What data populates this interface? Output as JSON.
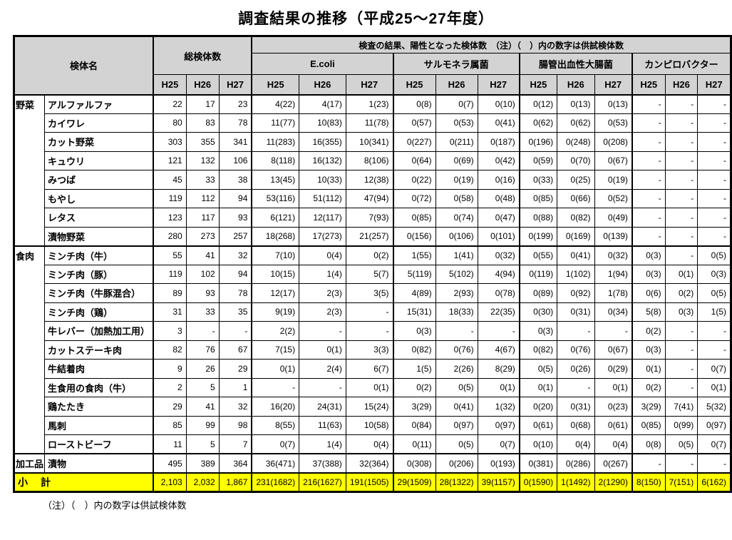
{
  "title": "調査結果の推移（平成25～27年度）",
  "footnote": "（注）（　）内の数字は供試検体数",
  "colors": {
    "header_bg": "#d3d3d3",
    "subtotal_bg": "#ffff00",
    "border": "#000000"
  },
  "header": {
    "sample_name": "検体名",
    "total_samples": "総検体数",
    "positive_note": "検査の結果、陽性となった検体数　（注）（　）内の数字は供試検体数",
    "groups": [
      "E.coli",
      "サルモネラ属菌",
      "腸管出血性大腸菌",
      "カンピロバクター"
    ],
    "years": [
      "H25",
      "H26",
      "H27"
    ]
  },
  "rows": [
    {
      "group": "野菜",
      "group_rows": 8,
      "name": "アルファルファ",
      "total": [
        "22",
        "17",
        "23"
      ],
      "ecoli": [
        "4(22)",
        "4(17)",
        "1(23)"
      ],
      "salmonella": [
        "0(8)",
        "0(7)",
        "0(10)"
      ],
      "ehec": [
        "0(12)",
        "0(13)",
        "0(13)"
      ],
      "campylobacter": [
        "-",
        "-",
        "-"
      ]
    },
    {
      "name": "カイワレ",
      "total": [
        "80",
        "83",
        "78"
      ],
      "ecoli": [
        "11(77)",
        "10(83)",
        "11(78)"
      ],
      "salmonella": [
        "0(57)",
        "0(53)",
        "0(41)"
      ],
      "ehec": [
        "0(62)",
        "0(62)",
        "0(53)"
      ],
      "campylobacter": [
        "-",
        "-",
        "-"
      ]
    },
    {
      "name": "カット野菜",
      "total": [
        "303",
        "355",
        "341"
      ],
      "ecoli": [
        "11(283)",
        "16(355)",
        "10(341)"
      ],
      "salmonella": [
        "0(227)",
        "0(211)",
        "0(187)"
      ],
      "ehec": [
        "0(196)",
        "0(248)",
        "0(208)"
      ],
      "campylobacter": [
        "-",
        "-",
        "-"
      ]
    },
    {
      "name": "キュウリ",
      "total": [
        "121",
        "132",
        "106"
      ],
      "ecoli": [
        "8(118)",
        "16(132)",
        "8(106)"
      ],
      "salmonella": [
        "0(64)",
        "0(69)",
        "0(42)"
      ],
      "ehec": [
        "0(59)",
        "0(70)",
        "0(67)"
      ],
      "campylobacter": [
        "-",
        "-",
        "-"
      ]
    },
    {
      "name": "みつば",
      "total": [
        "45",
        "33",
        "38"
      ],
      "ecoli": [
        "13(45)",
        "10(33)",
        "12(38)"
      ],
      "salmonella": [
        "0(22)",
        "0(19)",
        "0(16)"
      ],
      "ehec": [
        "0(33)",
        "0(25)",
        "0(19)"
      ],
      "campylobacter": [
        "-",
        "-",
        "-"
      ]
    },
    {
      "name": "もやし",
      "total": [
        "119",
        "112",
        "94"
      ],
      "ecoli": [
        "53(116)",
        "51(112)",
        "47(94)"
      ],
      "salmonella": [
        "0(72)",
        "0(58)",
        "0(48)"
      ],
      "ehec": [
        "0(85)",
        "0(66)",
        "0(52)"
      ],
      "campylobacter": [
        "-",
        "-",
        "-"
      ]
    },
    {
      "name": "レタス",
      "total": [
        "123",
        "117",
        "93"
      ],
      "ecoli": [
        "6(121)",
        "12(117)",
        "7(93)"
      ],
      "salmonella": [
        "0(85)",
        "0(74)",
        "0(47)"
      ],
      "ehec": [
        "0(88)",
        "0(82)",
        "0(49)"
      ],
      "campylobacter": [
        "-",
        "-",
        "-"
      ]
    },
    {
      "name": "漬物野菜",
      "total": [
        "280",
        "273",
        "257"
      ],
      "ecoli": [
        "18(268)",
        "17(273)",
        "21(257)"
      ],
      "salmonella": [
        "0(156)",
        "0(106)",
        "0(101)"
      ],
      "ehec": [
        "0(199)",
        "0(169)",
        "0(139)"
      ],
      "campylobacter": [
        "-",
        "-",
        "-"
      ]
    },
    {
      "group": "食肉",
      "group_rows": 11,
      "name": "ミンチ肉（牛）",
      "total": [
        "55",
        "41",
        "32"
      ],
      "ecoli": [
        "7(10)",
        "0(4)",
        "0(2)"
      ],
      "salmonella": [
        "1(55)",
        "1(41)",
        "0(32)"
      ],
      "ehec": [
        "0(55)",
        "0(41)",
        "0(32)"
      ],
      "campylobacter": [
        "0(3)",
        "-",
        "0(5)"
      ]
    },
    {
      "name": "ミンチ肉（豚）",
      "total": [
        "119",
        "102",
        "94"
      ],
      "ecoli": [
        "10(15)",
        "1(4)",
        "5(7)"
      ],
      "salmonella": [
        "5(119)",
        "5(102)",
        "4(94)"
      ],
      "ehec": [
        "0(119)",
        "1(102)",
        "1(94)"
      ],
      "campylobacter": [
        "0(3)",
        "0(1)",
        "0(3)"
      ]
    },
    {
      "name": "ミンチ肉（牛豚混合）",
      "total": [
        "89",
        "93",
        "78"
      ],
      "ecoli": [
        "12(17)",
        "2(3)",
        "3(5)"
      ],
      "salmonella": [
        "4(89)",
        "2(93)",
        "0(78)"
      ],
      "ehec": [
        "0(89)",
        "0(92)",
        "1(78)"
      ],
      "campylobacter": [
        "0(6)",
        "0(2)",
        "0(5)"
      ]
    },
    {
      "name": "ミンチ肉（鶏）",
      "total": [
        "31",
        "33",
        "35"
      ],
      "ecoli": [
        "9(19)",
        "2(3)",
        "-"
      ],
      "salmonella": [
        "15(31)",
        "18(33)",
        "22(35)"
      ],
      "ehec": [
        "0(30)",
        "0(31)",
        "0(34)"
      ],
      "campylobacter": [
        "5(8)",
        "0(3)",
        "1(5)"
      ]
    },
    {
      "name": "牛レバー（加熱加工用）",
      "total": [
        "3",
        "-",
        "-"
      ],
      "ecoli": [
        "2(2)",
        "-",
        "-"
      ],
      "salmonella": [
        "0(3)",
        "-",
        "-"
      ],
      "ehec": [
        "0(3)",
        "-",
        "-"
      ],
      "campylobacter": [
        "0(2)",
        "-",
        "-"
      ]
    },
    {
      "name": "カットステーキ肉",
      "total": [
        "82",
        "76",
        "67"
      ],
      "ecoli": [
        "7(15)",
        "0(1)",
        "3(3)"
      ],
      "salmonella": [
        "0(82)",
        "0(76)",
        "4(67)"
      ],
      "ehec": [
        "0(82)",
        "0(76)",
        "0(67)"
      ],
      "campylobacter": [
        "0(3)",
        "-",
        "-"
      ]
    },
    {
      "name": "牛結着肉",
      "total": [
        "9",
        "26",
        "29"
      ],
      "ecoli": [
        "0(1)",
        "2(4)",
        "6(7)"
      ],
      "salmonella": [
        "1(5)",
        "2(26)",
        "8(29)"
      ],
      "ehec": [
        "0(5)",
        "0(26)",
        "0(29)"
      ],
      "campylobacter": [
        "0(1)",
        "-",
        "0(7)"
      ]
    },
    {
      "name": "生食用の食肉（牛）",
      "total": [
        "2",
        "5",
        "1"
      ],
      "ecoli": [
        "-",
        "-",
        "0(1)"
      ],
      "salmonella": [
        "0(2)",
        "0(5)",
        "0(1)"
      ],
      "ehec": [
        "0(1)",
        "-",
        "0(1)"
      ],
      "campylobacter": [
        "0(2)",
        "-",
        "0(1)"
      ]
    },
    {
      "name": "鶏たたき",
      "total": [
        "29",
        "41",
        "32"
      ],
      "ecoli": [
        "16(20)",
        "24(31)",
        "15(24)"
      ],
      "salmonella": [
        "3(29)",
        "0(41)",
        "1(32)"
      ],
      "ehec": [
        "0(20)",
        "0(31)",
        "0(23)"
      ],
      "campylobacter": [
        "3(29)",
        "7(41)",
        "5(32)"
      ]
    },
    {
      "name": "馬刺",
      "total": [
        "85",
        "99",
        "98"
      ],
      "ecoli": [
        "8(55)",
        "11(63)",
        "10(58)"
      ],
      "salmonella": [
        "0(84)",
        "0(97)",
        "0(97)"
      ],
      "ehec": [
        "0(61)",
        "0(68)",
        "0(61)"
      ],
      "campylobacter": [
        "0(85)",
        "0(99)",
        "0(97)"
      ]
    },
    {
      "name": "ローストビーフ",
      "total": [
        "11",
        "5",
        "7"
      ],
      "ecoli": [
        "0(7)",
        "1(4)",
        "0(4)"
      ],
      "salmonella": [
        "0(11)",
        "0(5)",
        "0(7)"
      ],
      "ehec": [
        "0(10)",
        "0(4)",
        "0(4)"
      ],
      "campylobacter": [
        "0(8)",
        "0(5)",
        "0(7)"
      ]
    },
    {
      "group": "加工品",
      "group_rows": 1,
      "name": "漬物",
      "total": [
        "495",
        "389",
        "364"
      ],
      "ecoli": [
        "36(471)",
        "37(388)",
        "32(364)"
      ],
      "salmonella": [
        "0(308)",
        "0(206)",
        "0(193)"
      ],
      "ehec": [
        "0(381)",
        "0(286)",
        "0(267)"
      ],
      "campylobacter": [
        "-",
        "-",
        "-"
      ]
    }
  ],
  "subtotal": {
    "label": "小　計",
    "total": [
      "2,103",
      "2,032",
      "1,867"
    ],
    "ecoli": [
      "231(1682)",
      "216(1627)",
      "191(1505)"
    ],
    "salmonella": [
      "29(1509)",
      "28(1322)",
      "39(1157)"
    ],
    "ehec": [
      "0(1590)",
      "1(1492)",
      "2(1290)"
    ],
    "campylobacter": [
      "8(150)",
      "7(151)",
      "6(162)"
    ]
  }
}
